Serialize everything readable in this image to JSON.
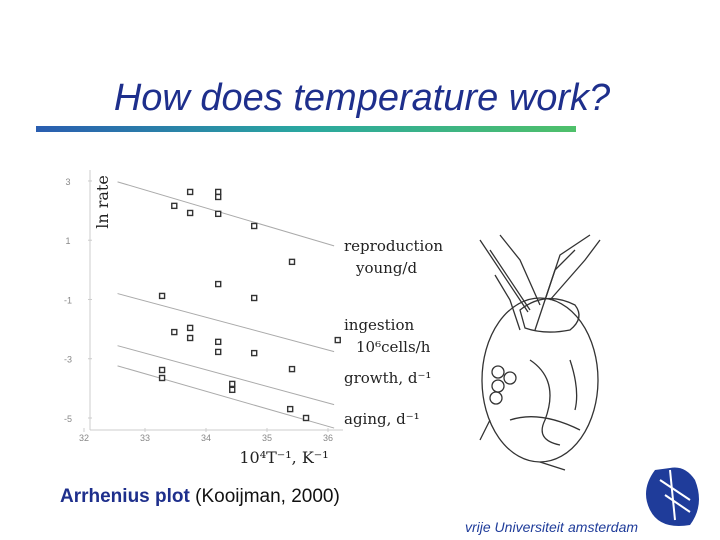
{
  "slide": {
    "title": "How does temperature work?",
    "caption_bold": "Arrhenius plot",
    "caption_rest": "(Kooijman, 2000)",
    "logo_left": "vrije Universiteit",
    "logo_right": "amsterdam"
  },
  "chart_data": {
    "type": "scatter",
    "ylabel": "ln rate",
    "xlabel": "10⁴T⁻¹, K⁻¹",
    "xlim": [
      31.9,
      36.25
    ],
    "ylim": [
      -5.5,
      3.35
    ],
    "xticks": [
      32,
      33,
      34,
      35,
      36
    ],
    "yticks": [
      3,
      1,
      -1,
      -3,
      -5
    ],
    "series": [
      {
        "name": "reproduction",
        "unit": "young/d",
        "color": "#333333",
        "x": [
          33.74,
          34.2,
          34.2,
          33.48,
          33.74,
          34.2,
          34.79,
          35.41
        ],
        "values": [
          2.63,
          2.63,
          2.46,
          2.16,
          1.92,
          1.89,
          1.48,
          0.27
        ],
        "fit_x": [
          32.55,
          36.1
        ],
        "fit_y": [
          2.97,
          0.81
        ]
      },
      {
        "name": "ingestion",
        "unit": "10⁶cells/h",
        "color": "#333333",
        "x": [
          33.28,
          34.2,
          34.79,
          36.16
        ],
        "values": [
          -0.88,
          -0.48,
          -0.95,
          -2.37
        ],
        "fit_x": [
          32.55,
          36.1
        ],
        "fit_y": [
          -0.8,
          -2.76
        ]
      },
      {
        "name": "growth, d⁻¹",
        "color": "#333333",
        "x": [
          33.48,
          33.74,
          33.74,
          34.2,
          34.2,
          34.79,
          35.41
        ],
        "values": [
          -2.1,
          -1.96,
          -2.3,
          -2.43,
          -2.77,
          -2.81,
          -3.35
        ],
        "fit_x": [
          32.55,
          36.1
        ],
        "fit_y": [
          -2.56,
          -4.55
        ]
      },
      {
        "name": "aging, d⁻¹",
        "color": "#333333",
        "x": [
          33.28,
          33.28,
          34.43,
          34.43,
          35.38,
          35.64
        ],
        "values": [
          -3.38,
          -3.65,
          -3.85,
          -4.05,
          -4.7,
          -5.0
        ],
        "fit_x": [
          32.55,
          36.1
        ],
        "fit_y": [
          -3.24,
          -5.34
        ]
      }
    ]
  }
}
